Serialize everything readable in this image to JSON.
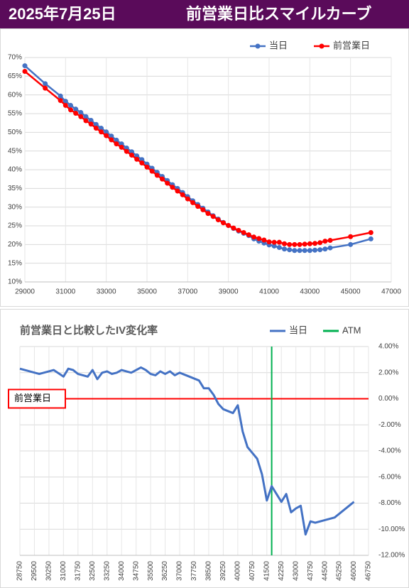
{
  "header": {
    "date": "2025年7月25日",
    "title": "前営業日比スマイルカーブ"
  },
  "chart_data": [
    {
      "type": "line",
      "x": [
        29000,
        30000,
        30750,
        31000,
        31250,
        31500,
        31750,
        32000,
        32250,
        32500,
        32750,
        33000,
        33250,
        33500,
        33750,
        34000,
        34250,
        34500,
        34750,
        35000,
        35250,
        35500,
        35750,
        36000,
        36250,
        36500,
        36750,
        37000,
        37250,
        37500,
        37750,
        38000,
        38250,
        38500,
        38750,
        39000,
        39250,
        39500,
        39750,
        40000,
        40250,
        40500,
        40750,
        41000,
        41250,
        41500,
        41750,
        42000,
        42250,
        42500,
        42750,
        43000,
        43250,
        43500,
        43750,
        44000,
        45000,
        46000
      ],
      "series": [
        {
          "name": "当日",
          "color": "#4472c4",
          "marker": "circle",
          "values": [
            67.8,
            63.0,
            59.7,
            58.3,
            57.2,
            56.2,
            55.3,
            54.2,
            53.2,
            52.1,
            51.1,
            50.1,
            49.0,
            47.9,
            46.9,
            45.8,
            44.8,
            43.7,
            42.7,
            41.5,
            40.4,
            39.3,
            38.2,
            37.1,
            36.0,
            35.0,
            33.9,
            32.8,
            31.7,
            30.7,
            29.7,
            28.7,
            27.7,
            26.8,
            25.9,
            25.1,
            24.3,
            23.6,
            23.0,
            22.4,
            21.5,
            20.9,
            20.4,
            19.9,
            19.6,
            19.2,
            18.8,
            18.6,
            18.4,
            18.4,
            18.4,
            18.4,
            18.5,
            18.6,
            18.8,
            19.1,
            20.0,
            21.5
          ]
        },
        {
          "name": "前営業日",
          "color": "#ff0000",
          "marker": "circle",
          "values": [
            66.3,
            61.8,
            58.5,
            57.2,
            56.0,
            55.1,
            54.2,
            53.1,
            52.2,
            51.1,
            50.1,
            49.1,
            48.0,
            46.9,
            46.0,
            44.9,
            43.9,
            42.8,
            41.8,
            40.7,
            39.6,
            38.5,
            37.5,
            36.4,
            35.3,
            34.3,
            33.3,
            32.2,
            31.2,
            30.2,
            29.3,
            28.3,
            27.5,
            26.6,
            25.8,
            25.1,
            24.4,
            23.8,
            23.2,
            22.6,
            22.0,
            21.6,
            21.2,
            20.7,
            20.6,
            20.6,
            20.2,
            20.0,
            20.0,
            20.0,
            20.1,
            20.2,
            20.3,
            20.5,
            20.9,
            21.1,
            22.1,
            23.2
          ]
        }
      ],
      "xlim": [
        29000,
        47000
      ],
      "xticks": [
        29000,
        31000,
        33000,
        35000,
        37000,
        39000,
        41000,
        43000,
        45000,
        47000
      ],
      "ylim": [
        10,
        70
      ],
      "yticks": [
        {
          "value": 10,
          "label": "10%"
        },
        {
          "value": 15,
          "label": "15%"
        },
        {
          "value": 20,
          "label": "20%"
        },
        {
          "value": 25,
          "label": "25%"
        },
        {
          "value": 30,
          "label": "30%"
        },
        {
          "value": 35,
          "label": "35%"
        },
        {
          "value": 40,
          "label": "40%"
        },
        {
          "value": 45,
          "label": "45%"
        },
        {
          "value": 50,
          "label": "50%"
        },
        {
          "value": 55,
          "label": "55%"
        },
        {
          "value": 60,
          "label": "60%"
        },
        {
          "value": 65,
          "label": "65%"
        },
        {
          "value": 70,
          "label": "70%"
        }
      ],
      "grid": true,
      "legend": "top-right"
    },
    {
      "type": "line",
      "title": "前営業日と比較したIV変化率",
      "x": [
        28750,
        29750,
        30500,
        31000,
        31250,
        31500,
        31750,
        32250,
        32500,
        32750,
        33000,
        33250,
        33500,
        33750,
        34000,
        34500,
        35000,
        35250,
        35500,
        35750,
        36000,
        36250,
        36500,
        36750,
        37000,
        37500,
        38000,
        38250,
        38500,
        38750,
        39000,
        39250,
        39750,
        40000,
        40250,
        40500,
        41000,
        41250,
        41500,
        41750,
        42000,
        42250,
        42500,
        42750,
        43000,
        43250,
        43500,
        43750,
        44000,
        45000,
        46000
      ],
      "series": [
        {
          "name": "当日",
          "color": "#4472c4",
          "values": [
            2.3,
            1.9,
            2.2,
            1.7,
            2.3,
            2.2,
            1.9,
            1.7,
            2.2,
            1.5,
            2.0,
            2.1,
            1.9,
            2.0,
            2.2,
            2.0,
            2.4,
            2.2,
            1.9,
            1.8,
            2.1,
            1.9,
            2.1,
            1.8,
            2.0,
            1.7,
            1.4,
            0.8,
            0.8,
            0.3,
            -0.4,
            -0.8,
            -1.1,
            -0.5,
            -2.5,
            -3.7,
            -4.6,
            -5.8,
            -7.8,
            -6.7,
            -7.3,
            -7.9,
            -7.3,
            -8.7,
            -8.4,
            -8.2,
            -10.4,
            -9.4,
            -9.5,
            -9.1,
            -7.9
          ]
        }
      ],
      "atm": {
        "name": "ATM",
        "x": 41750,
        "color": "#00b050"
      },
      "reference_line": {
        "label": "前営業日",
        "value": 0,
        "color": "#ff0000"
      },
      "xlim": [
        28750,
        46750
      ],
      "xticks": [
        28750,
        29500,
        30250,
        31000,
        31750,
        32500,
        33250,
        34000,
        34750,
        35500,
        36250,
        37000,
        37750,
        38500,
        39250,
        40000,
        40750,
        41500,
        42250,
        43000,
        43750,
        44500,
        45250,
        46000,
        46750
      ],
      "ylim": [
        -12,
        4
      ],
      "yticks": [
        {
          "value": 4,
          "label": "4.00%"
        },
        {
          "value": 2,
          "label": "2.00%"
        },
        {
          "value": 0,
          "label": "0.00%"
        },
        {
          "value": -2,
          "label": "-2.00%"
        },
        {
          "value": -4,
          "label": "-4.00%"
        },
        {
          "value": -6,
          "label": "-6.00%"
        },
        {
          "value": -8,
          "label": "-8.00%"
        },
        {
          "value": -10,
          "label": "-10.00%"
        },
        {
          "value": -12,
          "label": "-12.00%"
        }
      ],
      "grid": true,
      "legend": "top-right"
    }
  ]
}
